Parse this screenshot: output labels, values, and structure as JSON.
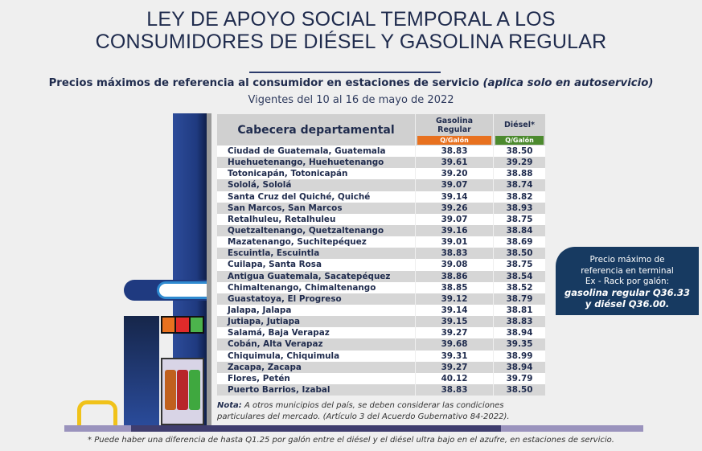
{
  "title": {
    "line1": "LEY DE APOYO SOCIAL TEMPORAL A LOS",
    "line2": "CONSUMIDORES DE DIÉSEL Y GASOLINA REGULAR"
  },
  "subtitle": {
    "main": "Precios máximos de referencia al consumidor en estaciones de servicio ",
    "italic": "(aplica solo en autoservicio)"
  },
  "validity": "Vigentes del 10 al 16 de mayo de 2022",
  "table": {
    "col_name": "Cabecera departamental",
    "col_gas": "Gasolina Regular",
    "col_diesel": "Diésel*",
    "unit_gas": "Q/Galón",
    "unit_diesel": "Q/Galón",
    "colors": {
      "gas_unit": "#e8711f",
      "diesel_unit": "#4c8a2e"
    },
    "rows": [
      {
        "name": "Ciudad de Guatemala, Guatemala",
        "gas": "38.83",
        "diesel": "38.50"
      },
      {
        "name": "Huehuetenango, Huehuetenango",
        "gas": "39.61",
        "diesel": "39.29"
      },
      {
        "name": "Totonicapán, Totonicapán",
        "gas": "39.20",
        "diesel": "38.88"
      },
      {
        "name": "Sololá, Sololá",
        "gas": "39.07",
        "diesel": "38.74"
      },
      {
        "name": "Santa Cruz del Quiché, Quiché",
        "gas": "39.14",
        "diesel": "38.82"
      },
      {
        "name": "San Marcos, San Marcos",
        "gas": "39.26",
        "diesel": "38.93"
      },
      {
        "name": "Retalhuleu, Retalhuleu",
        "gas": "39.07",
        "diesel": "38.75"
      },
      {
        "name": "Quetzaltenango, Quetzaltenango",
        "gas": "39.16",
        "diesel": "38.84"
      },
      {
        "name": "Mazatenango, Suchitepéquez",
        "gas": "39.01",
        "diesel": "38.69"
      },
      {
        "name": "Escuintla, Escuintla",
        "gas": "38.83",
        "diesel": "38.50"
      },
      {
        "name": "Cuilapa, Santa Rosa",
        "gas": "39.08",
        "diesel": "38.75"
      },
      {
        "name": "Antigua Guatemala, Sacatepéquez",
        "gas": "38.86",
        "diesel": "38.54"
      },
      {
        "name": "Chimaltenango, Chimaltenango",
        "gas": "38.85",
        "diesel": "38.52"
      },
      {
        "name": "Guastatoya, El Progreso",
        "gas": "39.12",
        "diesel": "38.79"
      },
      {
        "name": "Jalapa, Jalapa",
        "gas": "39.14",
        "diesel": "38.81"
      },
      {
        "name": "Jutiapa, Jutiapa",
        "gas": "39.15",
        "diesel": "38.83"
      },
      {
        "name": "Salamá, Baja Verapaz",
        "gas": "39.27",
        "diesel": "38.94"
      },
      {
        "name": "Cobán, Alta Verapaz",
        "gas": "39.68",
        "diesel": "39.35"
      },
      {
        "name": "Chiquimula, Chiquimula",
        "gas": "39.31",
        "diesel": "38.99"
      },
      {
        "name": "Zacapa, Zacapa",
        "gas": "39.27",
        "diesel": "38.94"
      },
      {
        "name": "Flores, Petén",
        "gas": "40.12",
        "diesel": "39.79"
      },
      {
        "name": "Puerto Barrios, Izabal",
        "gas": "38.83",
        "diesel": "38.50"
      }
    ]
  },
  "note": {
    "label": "Nota:",
    "line1": " A otros municipios del país, se deben considerar las condiciones",
    "line2": "particulares del mercado.  (Artículo 3 del Acuerdo Gubernativo 84-2022)."
  },
  "info_box": {
    "line1": "Precio máximo  de",
    "line2": "referencia en terminal",
    "line3": "Ex - Rack por galón:",
    "line4": "gasolina regular Q36.33",
    "line5": "y diésel Q36.00."
  },
  "footnote": "* Puede haber una diferencia de hasta Q1.25 por galón entre el diésel y el diésel ultra bajo en el azufre, en estaciones de servicio."
}
